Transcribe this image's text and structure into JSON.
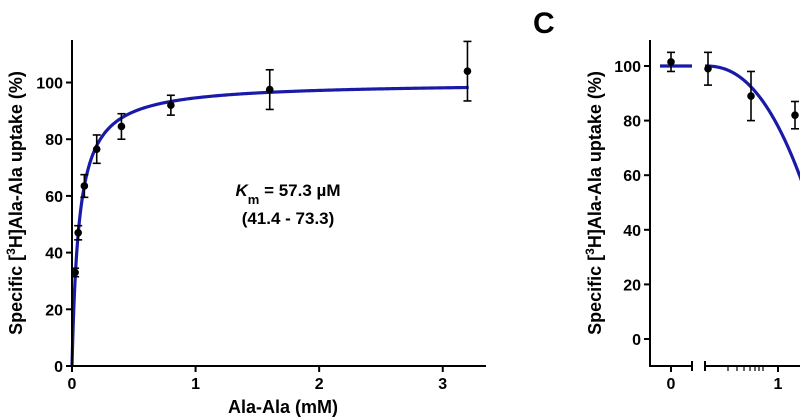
{
  "chart_data": [
    {
      "type": "scatter",
      "panel": "",
      "xlabel": "Ala-Ala (mM)",
      "ylabel_parts": {
        "pre": "Specific [",
        "sup": "3",
        "post": "H]Ala-Ala uptake (%)"
      },
      "xlim": [
        0,
        3.35
      ],
      "ylim": [
        0,
        115
      ],
      "xticks": [
        0,
        1,
        2,
        3
      ],
      "yticks": [
        0,
        20,
        40,
        60,
        80,
        100
      ],
      "points": [
        {
          "x": 0.025,
          "y": 33,
          "err": 1.5
        },
        {
          "x": 0.05,
          "y": 47,
          "err": 2.5
        },
        {
          "x": 0.1,
          "y": 63.5,
          "err": 4
        },
        {
          "x": 0.2,
          "y": 76.5,
          "err": 5
        },
        {
          "x": 0.4,
          "y": 84.5,
          "err": 4.5
        },
        {
          "x": 0.8,
          "y": 92,
          "err": 3.5
        },
        {
          "x": 1.6,
          "y": 97.5,
          "err": 7
        },
        {
          "x": 3.2,
          "y": 104,
          "err": 10.5
        }
      ],
      "fit": {
        "model": "michaelis-menten",
        "vmax": 100,
        "km_mM": 0.0573,
        "color": "#1a1aa8"
      },
      "annotation": {
        "sym": "K",
        "sub": "m",
        "value": " = 57.3 µM",
        "ci": "(41.4 - 73.3)"
      }
    },
    {
      "type": "scatter",
      "panel": "C",
      "xlabel": "",
      "ylabel_parts": {
        "pre": "Specific [",
        "sup": "3",
        "post": "H]Ala-Ala uptake (%)"
      },
      "ylim": [
        -8,
        110
      ],
      "xticks": [
        0,
        1
      ],
      "yticks": [
        0,
        20,
        40,
        60,
        80,
        100
      ],
      "points": [
        {
          "x": 0,
          "y": 101.5,
          "err": 3.5
        },
        {
          "x": 0.5,
          "y": 99,
          "err": 6
        },
        {
          "x": 0.9,
          "y": 89,
          "err": 9
        },
        {
          "x": 1.2,
          "y": 82,
          "err": 5
        }
      ],
      "fit_color": "#1a1aa8"
    }
  ]
}
